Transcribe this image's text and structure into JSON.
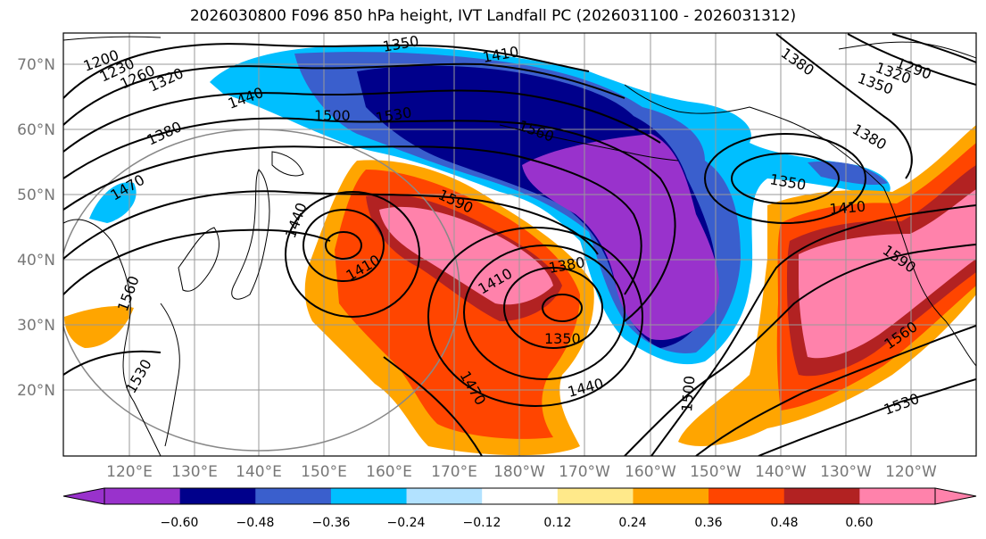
{
  "title": "2026030800 F096 850 hPa height, IVT Landfall PC (2026031100 - 2026031312)",
  "lat_ticks": [
    "70°N",
    "60°N",
    "50°N",
    "40°N",
    "30°N",
    "20°N"
  ],
  "lon_ticks": [
    "120°E",
    "130°E",
    "140°E",
    "150°E",
    "160°E",
    "170°E",
    "180°W",
    "170°W",
    "160°W",
    "150°W",
    "140°W",
    "130°W",
    "120°W"
  ],
  "contour_labels": [
    {
      "text": "1200"
    },
    {
      "text": "1230"
    },
    {
      "text": "1260"
    },
    {
      "text": "1320"
    },
    {
      "text": "1350"
    },
    {
      "text": "1410"
    },
    {
      "text": "1440"
    },
    {
      "text": "1500"
    },
    {
      "text": "1530"
    },
    {
      "text": "1380"
    },
    {
      "text": "1470"
    },
    {
      "text": "1560"
    },
    {
      "text": "1380"
    },
    {
      "text": "1320"
    },
    {
      "text": "1290"
    },
    {
      "text": "1350"
    },
    {
      "text": "1380"
    },
    {
      "text": "1350"
    },
    {
      "text": "1410"
    },
    {
      "text": "1590"
    },
    {
      "text": "1410"
    },
    {
      "text": "1410"
    },
    {
      "text": "1380"
    },
    {
      "text": "1350"
    },
    {
      "text": "1440"
    },
    {
      "text": "1470"
    },
    {
      "text": "1500"
    },
    {
      "text": "1530"
    },
    {
      "text": "1590"
    },
    {
      "text": "1560"
    },
    {
      "text": "1530"
    },
    {
      "text": "1560"
    },
    {
      "text": "1440"
    }
  ],
  "colorbar": {
    "labels": [
      "−0.60",
      "−0.48",
      "−0.36",
      "−0.24",
      "−0.12",
      "0.12",
      "0.24",
      "0.36",
      "0.48",
      "0.60"
    ],
    "colors": [
      "#9932CC",
      "#00008B",
      "#3A5FCD",
      "#00BFFF",
      "#B2E2FF",
      "#FFFFFF",
      "#FFE98A",
      "#FFA500",
      "#FF4500",
      "#B22222",
      "#FF82AB"
    ]
  },
  "colors": {
    "frame": "#000000",
    "grid": "#999999",
    "coast": "#000000"
  }
}
